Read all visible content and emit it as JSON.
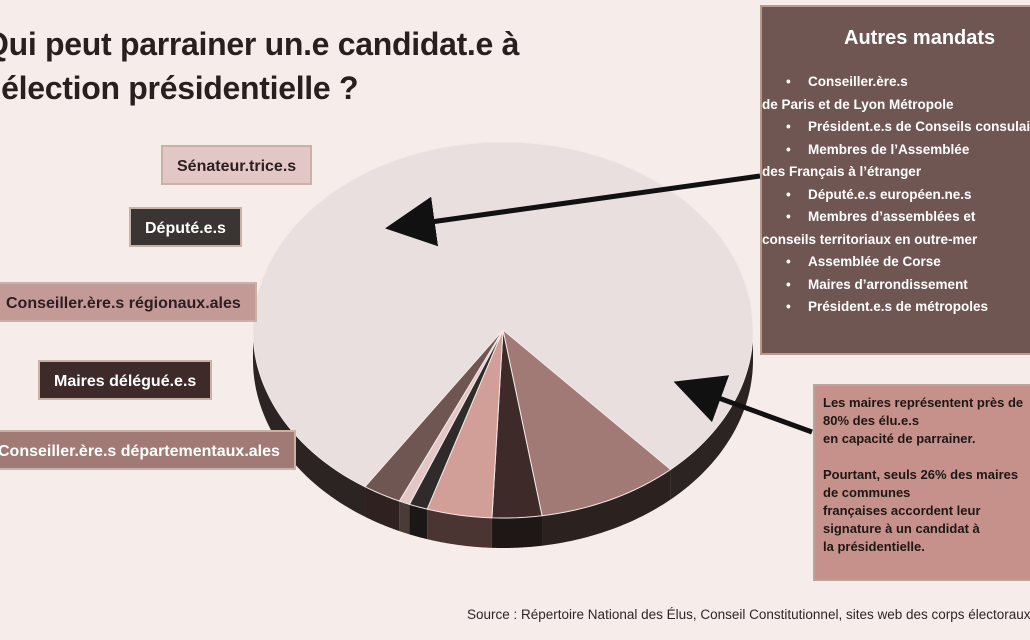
{
  "title_lines": [
    "Qui peut parrainer un.e candidat.e à",
    "l’élection présidentielle ?"
  ],
  "legend_labels": {
    "senateurs": "Sénateur.trice.s",
    "deputes": "Député.e.s",
    "regionaux": "Conseiller.ère.s régionaux.ales",
    "delegues": "Maires délégué.e.s",
    "departementaux": "Conseiller.ère.s départementaux.ales"
  },
  "chart_data": {
    "type": "pie",
    "style": "3d-exploded",
    "unit": "%",
    "slices": [
      {
        "key": "maires",
        "value": 79.0,
        "color": "#e9dfde",
        "side_color": "#2c2423"
      },
      {
        "key": "departementaux",
        "value": 9.2,
        "color": "#a17a76",
        "side_color": "#2b2220"
      },
      {
        "key": "delegues",
        "value": 3.2,
        "color": "#3e2b29",
        "side_color": "#1e1716"
      },
      {
        "key": "regionaux",
        "value": 4.2,
        "color": "#d29e98",
        "side_color": "#4a3532"
      },
      {
        "key": "deputes",
        "value": 1.2,
        "color": "#2f2b2a",
        "side_color": "#1a1716"
      },
      {
        "key": "senateurs",
        "value": 0.7,
        "color": "#e3c6c6",
        "side_color": "#4a3a38"
      },
      {
        "key": "autres_mandats",
        "value": 2.5,
        "color": "#6f5653",
        "side_color": "#2e2120"
      }
    ]
  },
  "autres_mandats": {
    "title": "Autres mandats",
    "bullet": "•",
    "items": [
      {
        "text": "Conseiller.ère.s",
        "cont": "de Paris et de Lyon Métropole"
      },
      {
        "text": "Président.e.s de Conseils consulaires",
        "cont": ""
      },
      {
        "text": "Membres de l’Assemblée",
        "cont": "des Français à l’étranger"
      },
      {
        "text": "Député.e.s européen.ne.s",
        "cont": ""
      },
      {
        "text": "Membres d’assemblées et",
        "cont": "conseils territoriaux en outre-mer"
      },
      {
        "text": "Assemblée de Corse",
        "cont": ""
      },
      {
        "text": "Maires d’arrondissement",
        "cont": ""
      },
      {
        "text": "Président.e.s de métropoles",
        "cont": ""
      }
    ]
  },
  "note": {
    "para1": [
      "Les maires représentent près de",
      "80% des élu.e.s",
      "en capacité de parrainer."
    ],
    "para2": [
      "Pourtant, seuls 26% des maires",
      "de communes",
      "françaises accordent leur",
      "signature à un candidat à",
      "la présidentielle."
    ]
  },
  "source": "Source : Répertoire National des Élus, Conseil Constitutionnel, sites web des corps électoraux"
}
